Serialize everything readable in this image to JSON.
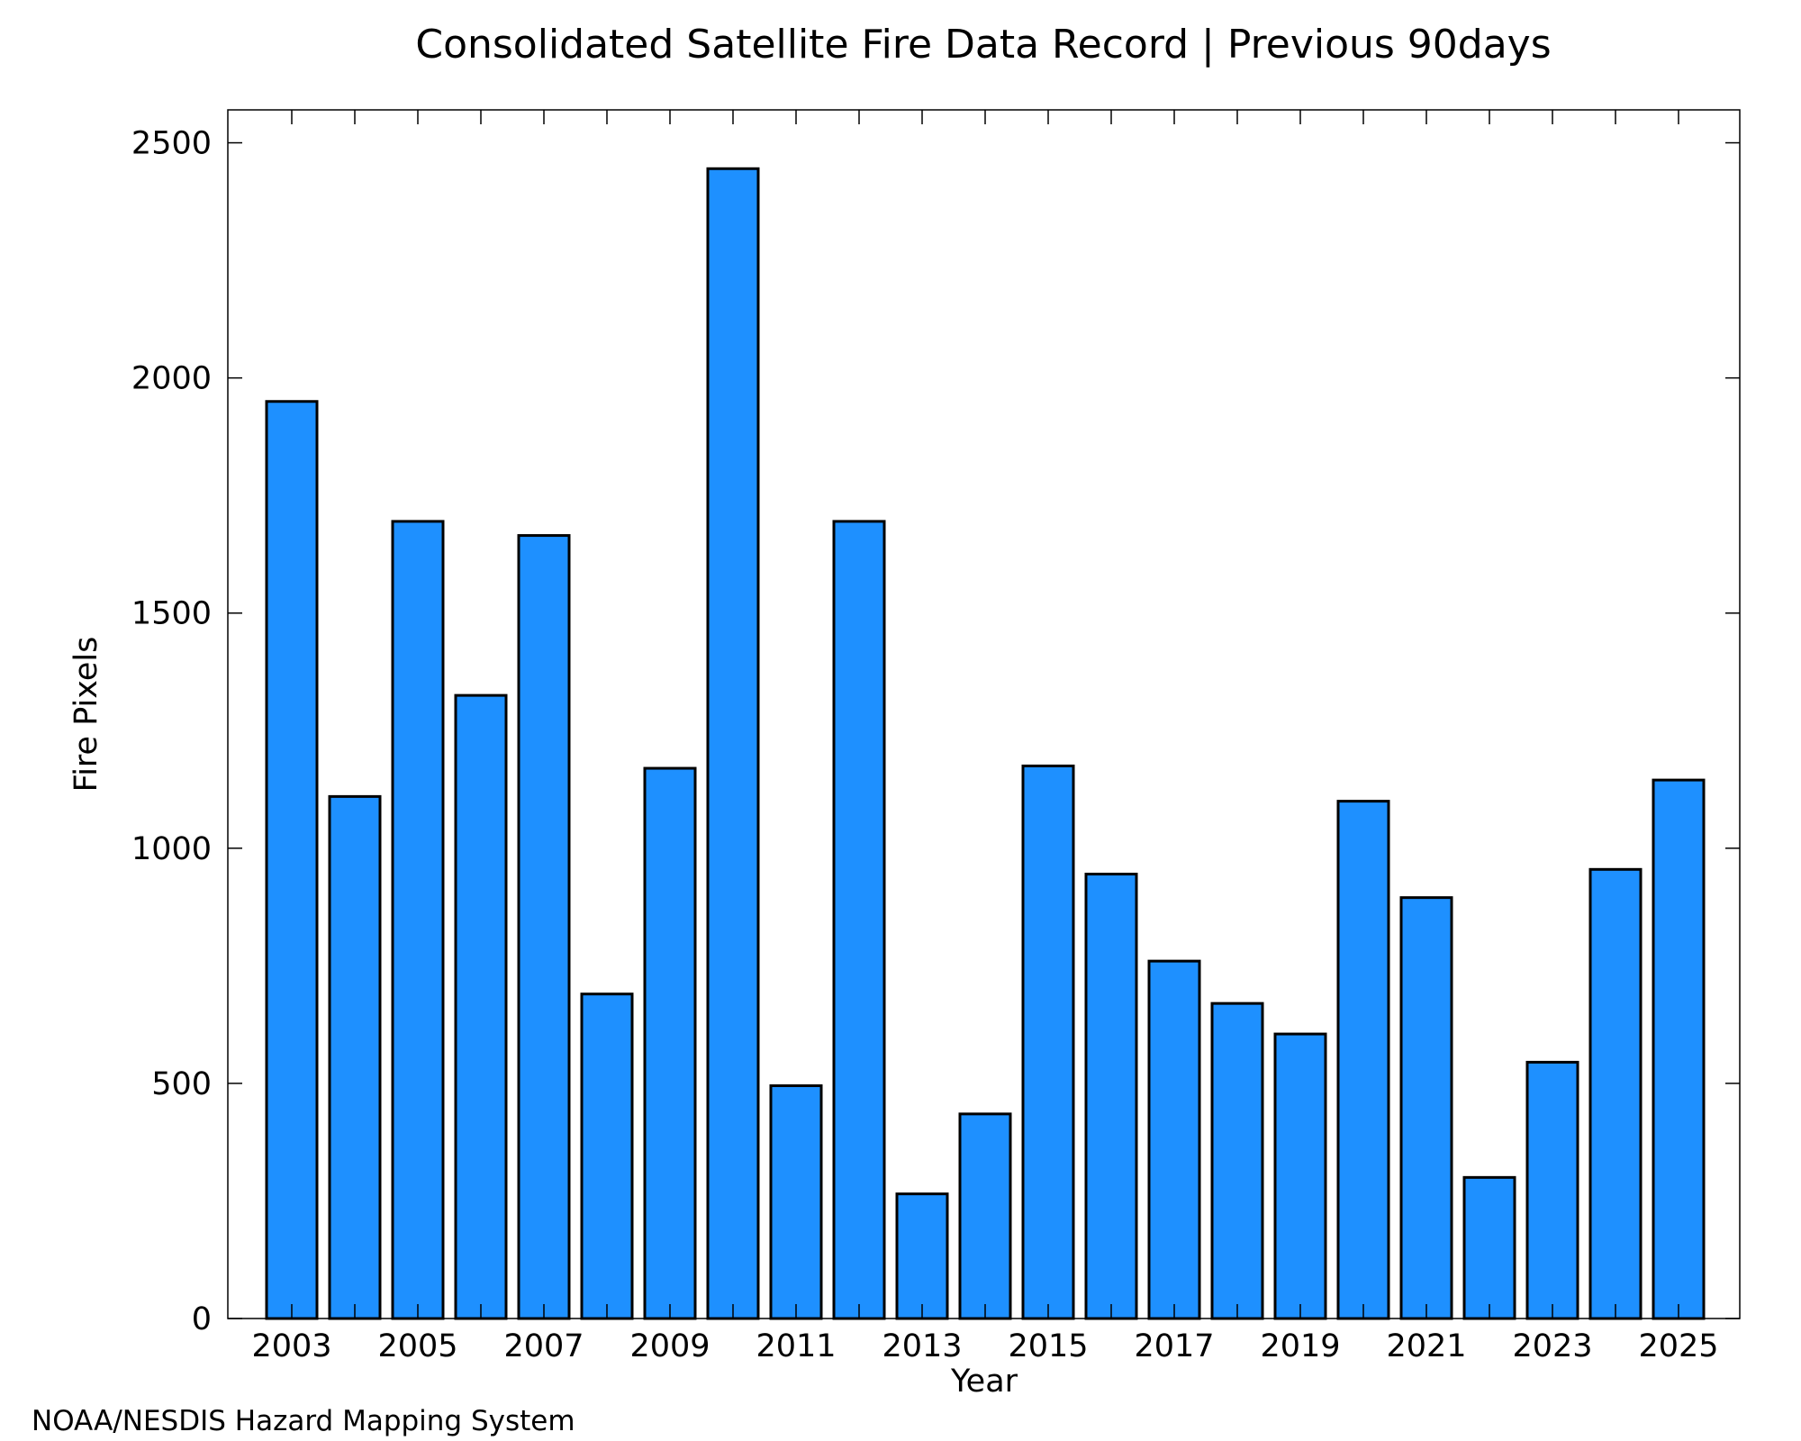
{
  "chart_data": {
    "type": "bar",
    "title": "Consolidated Satellite Fire Data Record | Previous 90days",
    "xlabel": "Year",
    "ylabel": "Fire Pixels",
    "ylim": [
      0,
      2570
    ],
    "yticks": [
      "0",
      "500",
      "1000",
      "1500",
      "2000",
      "2500"
    ],
    "categories": [
      "2003",
      "2004",
      "2005",
      "2006",
      "2007",
      "2008",
      "2009",
      "2010",
      "2011",
      "2012",
      "2013",
      "2014",
      "2015",
      "2016",
      "2017",
      "2018",
      "2019",
      "2020",
      "2021",
      "2022",
      "2023",
      "2024",
      "2025"
    ],
    "xtick_labels": [
      "2003",
      "2005",
      "2007",
      "2009",
      "2011",
      "2013",
      "2015",
      "2017",
      "2019",
      "2021",
      "2023",
      "2025"
    ],
    "values": [
      1950,
      1110,
      1695,
      1325,
      1665,
      690,
      1170,
      2445,
      495,
      1695,
      265,
      435,
      1175,
      945,
      760,
      670,
      605,
      1100,
      895,
      300,
      545,
      955,
      1145
    ],
    "bar_color": "#1e90ff",
    "edge_color": "#000000",
    "grid": false,
    "legend": "none"
  },
  "credit": "NOAA/NESDIS Hazard Mapping System",
  "credit_color": "#808080"
}
